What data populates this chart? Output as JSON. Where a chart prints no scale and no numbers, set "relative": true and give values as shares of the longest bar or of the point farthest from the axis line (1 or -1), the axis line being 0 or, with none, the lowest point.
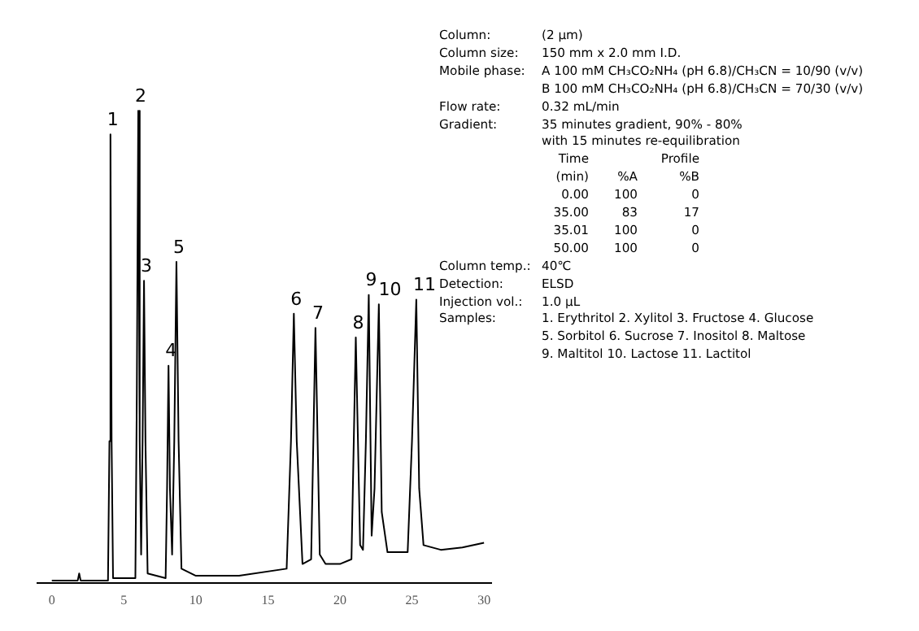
{
  "chart_data": {
    "type": "line",
    "relative": true,
    "xlim": [
      -1,
      30.5
    ],
    "xticks": [
      0,
      5,
      10,
      15,
      20,
      25,
      30
    ],
    "x": [
      0,
      1.8,
      1.9,
      2.0,
      3.9,
      4.0,
      4.07,
      4.15,
      4.25,
      5.8,
      5.9,
      6.0,
      6.1,
      6.2,
      6.3,
      6.4,
      6.5,
      6.65,
      7.9,
      8.0,
      8.1,
      8.2,
      8.35,
      8.5,
      8.65,
      8.8,
      9.0,
      10,
      13,
      16.3,
      16.6,
      16.8,
      17.0,
      17.4,
      18.0,
      18.3,
      18.6,
      19,
      20,
      20.8,
      21.1,
      21.4,
      21.6,
      21.8,
      22.0,
      22.2,
      22.4,
      22.7,
      22.9,
      23.3,
      24.7,
      25.0,
      25.3,
      25.5,
      25.8,
      27,
      28.5,
      30
    ],
    "series": [
      {
        "color": "#000000",
        "values": [
          0.005,
          0.005,
          0.02,
          0.005,
          0.005,
          0.3,
          0.95,
          0.3,
          0.01,
          0.01,
          0.4,
          1,
          0.3,
          0.06,
          0.3,
          0.64,
          0.3,
          0.02,
          0.01,
          0.2,
          0.46,
          0.2,
          0.06,
          0.3,
          0.68,
          0.3,
          0.03,
          0.015,
          0.015,
          0.03,
          0.3,
          0.57,
          0.3,
          0.04,
          0.05,
          0.54,
          0.06,
          0.04,
          0.04,
          0.05,
          0.52,
          0.08,
          0.07,
          0.3,
          0.61,
          0.1,
          0.2,
          0.59,
          0.15,
          0.065,
          0.065,
          0.3,
          0.6,
          0.2,
          0.08,
          0.07,
          0.075,
          0.085
        ]
      }
    ],
    "annotations": [
      {
        "text": "1",
        "x": 4.07,
        "y": 0.95
      },
      {
        "text": "2",
        "x": 6.0,
        "y": 1
      },
      {
        "text": "3",
        "x": 6.4,
        "y": 0.64
      },
      {
        "text": "4",
        "x": 8.1,
        "y": 0.46
      },
      {
        "text": "5",
        "x": 8.65,
        "y": 0.68
      },
      {
        "text": "6",
        "x": 16.8,
        "y": 0.57
      },
      {
        "text": "7",
        "x": 18.3,
        "y": 0.54
      },
      {
        "text": "8",
        "x": 21.1,
        "y": 0.52
      },
      {
        "text": "9",
        "x": 22.0,
        "y": 0.61
      },
      {
        "text": "10",
        "x": 22.7,
        "y": 0.59
      },
      {
        "text": "11",
        "x": 25.3,
        "y": 0.6
      },
      "Column:\t(2 μm)",
      "Column size:\t150 mm x 2.0 mm I.D.",
      "Mobile phase:\tA 100 mM CH₃CO₂NH₄ (pH 6.8)/CH₃CN = 10/90 (v/v)",
      "\tB 100 mM CH₃CO₂NH₄ (pH 6.8)/CH₃CN = 70/30 (v/v)",
      "Flow rate:\t0.32 mL/min",
      "Gradient:\t35 minutes gradient, 90% - 80%",
      "\twith 15 minutes re-equilibration",
      "\tTime\t\tProfile",
      "\t(min)\t%A\t%B",
      "\t0.00\t100\t0",
      "\t35.00\t83\t17",
      "\t35.01\t100\t0",
      "\t50.00\t100\t0",
      "Column temp.:\t40℃",
      "Detection:\tELSD",
      "Injection vol.:\t1.0 μL",
      "Samples:\t1. Erythritol  2. Xylitol  3. Fructose  4. Glucose",
      "\t5. Sorbitol  6. Sucrose  7. Inositol  8. Maltose",
      "\t9. Maltitol  10. Lactose  11. Lactitol"
    ]
  }
}
